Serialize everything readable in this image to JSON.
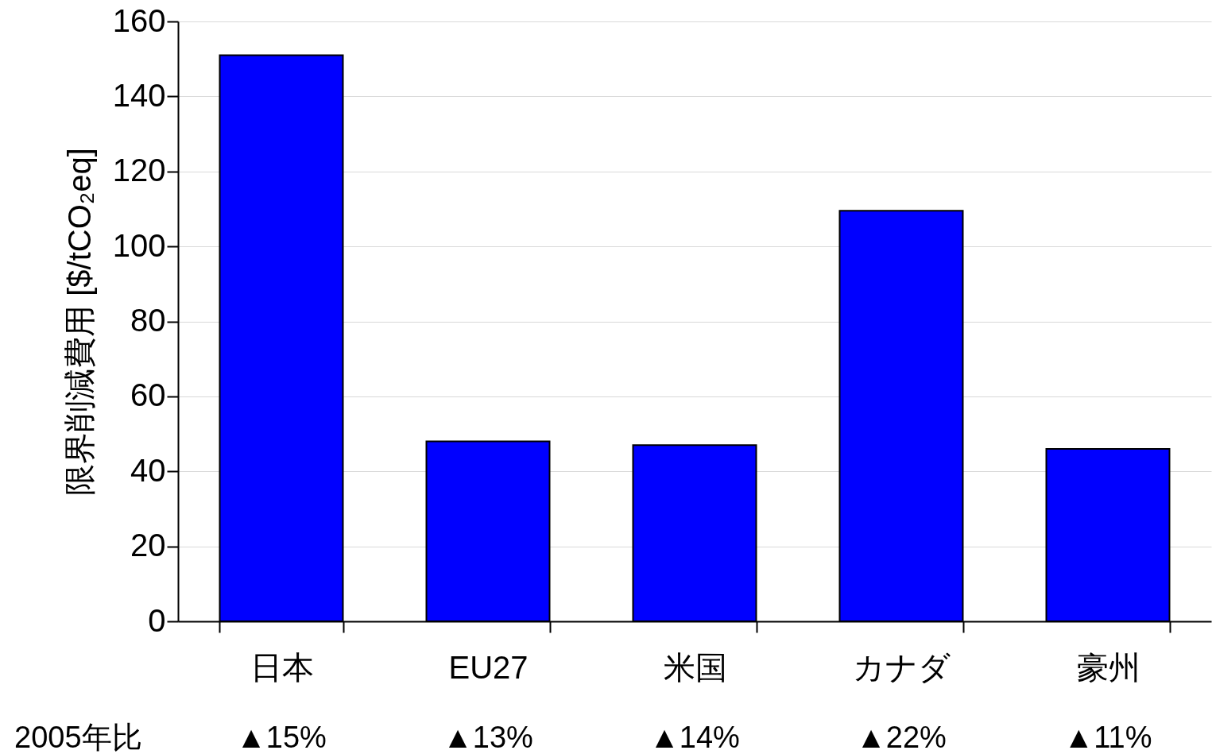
{
  "chart_data": {
    "type": "bar",
    "ylabel": "限界削減費用 [$/tCO₂eq]",
    "categories": [
      "日本",
      "EU27",
      "米国",
      "カナダ",
      "豪州"
    ],
    "values": [
      151,
      48,
      47,
      109.5,
      46
    ],
    "color": "#0000ff",
    "ylim": [
      0,
      160
    ],
    "yticks": [
      0,
      20,
      40,
      60,
      80,
      100,
      120,
      140,
      160
    ],
    "grid": "y",
    "annotations": [
      "2005年比",
      "▲15%",
      "▲13%",
      "▲14%",
      "▲22%",
      "▲11%"
    ]
  }
}
